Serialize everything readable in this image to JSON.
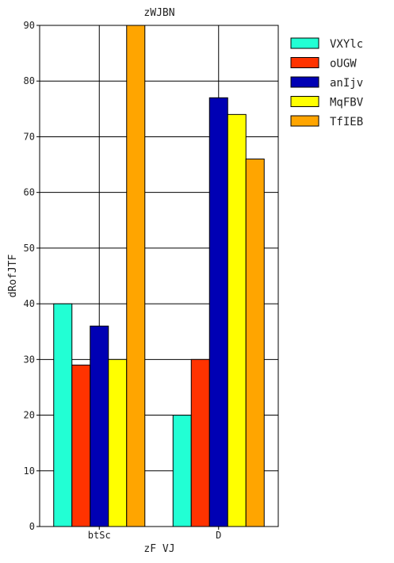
{
  "chart_data": {
    "type": "bar",
    "title": "zWJBN",
    "xlabel": "zF VJ",
    "ylabel": "dRofJTF",
    "categories": [
      "btSc",
      "D"
    ],
    "ylim": [
      0,
      90
    ],
    "yticks": [
      0,
      10,
      20,
      30,
      40,
      50,
      60,
      70,
      80,
      90
    ],
    "grid": true,
    "legend_position": "top-right-outside",
    "series": [
      {
        "name": "VXYlc",
        "color": "#22ffd4",
        "values": [
          40,
          20
        ]
      },
      {
        "name": "oUGW",
        "color": "#ff3300",
        "values": [
          29,
          30
        ]
      },
      {
        "name": "anIjv",
        "color": "#0000b4",
        "values": [
          36,
          77
        ]
      },
      {
        "name": "MqFBV",
        "color": "#ffff00",
        "values": [
          30,
          74
        ]
      },
      {
        "name": "TfIEB",
        "color": "#ffa500",
        "values": [
          90,
          66
        ]
      }
    ]
  }
}
